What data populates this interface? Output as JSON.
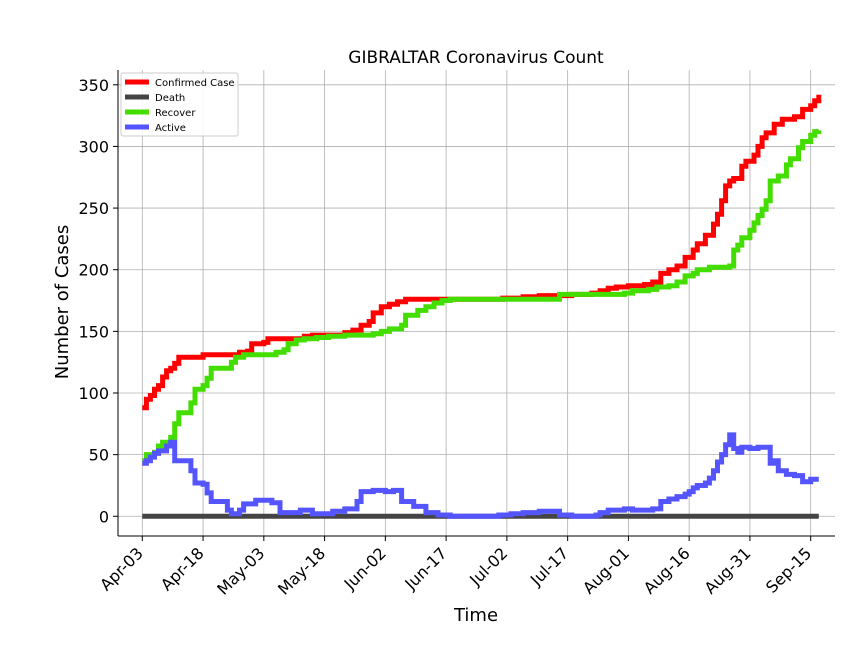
{
  "chart_data": {
    "type": "line",
    "title": "GIBRALTAR Coronavirus Count",
    "xlabel": "Time",
    "ylabel": "Number of Cases",
    "ylim": [
      -16,
      362
    ],
    "yticks": [
      0,
      50,
      100,
      150,
      200,
      250,
      300,
      350
    ],
    "xlim": [
      "2020-03-28",
      "2020-09-21"
    ],
    "xtick_dates": [
      "2020-04-03",
      "2020-04-18",
      "2020-05-03",
      "2020-05-18",
      "2020-06-02",
      "2020-06-17",
      "2020-07-02",
      "2020-07-17",
      "2020-08-01",
      "2020-08-16",
      "2020-08-31",
      "2020-09-15"
    ],
    "xtick_labels": [
      "Apr-03",
      "Apr-18",
      "May-03",
      "May-18",
      "Jun-02",
      "Jun-17",
      "Jul-02",
      "Jul-17",
      "Aug-01",
      "Aug-16",
      "Aug-31",
      "Sep-15"
    ],
    "grid": true,
    "legend_position": "top-left",
    "series": [
      {
        "name": "Confirmed Case",
        "color": "#ff0000",
        "points": [
          [
            "2020-04-03",
            88
          ],
          [
            "2020-04-04",
            95
          ],
          [
            "2020-04-05",
            98
          ],
          [
            "2020-04-06",
            103
          ],
          [
            "2020-04-07",
            106
          ],
          [
            "2020-04-08",
            113
          ],
          [
            "2020-04-09",
            118
          ],
          [
            "2020-04-10",
            120
          ],
          [
            "2020-04-11",
            124
          ],
          [
            "2020-04-12",
            129
          ],
          [
            "2020-04-17",
            129
          ],
          [
            "2020-04-18",
            131
          ],
          [
            "2020-04-26",
            131
          ],
          [
            "2020-04-27",
            133
          ],
          [
            "2020-04-29",
            134
          ],
          [
            "2020-04-30",
            140
          ],
          [
            "2020-05-03",
            141
          ],
          [
            "2020-05-04",
            144
          ],
          [
            "2020-05-12",
            144
          ],
          [
            "2020-05-13",
            146
          ],
          [
            "2020-05-15",
            147
          ],
          [
            "2020-05-22",
            147
          ],
          [
            "2020-05-23",
            149
          ],
          [
            "2020-05-25",
            151
          ],
          [
            "2020-05-27",
            155
          ],
          [
            "2020-05-29",
            158
          ],
          [
            "2020-05-30",
            165
          ],
          [
            "2020-06-01",
            170
          ],
          [
            "2020-06-03",
            172
          ],
          [
            "2020-06-05",
            174
          ],
          [
            "2020-06-07",
            176
          ],
          [
            "2020-06-30",
            176
          ],
          [
            "2020-07-01",
            177
          ],
          [
            "2020-07-06",
            178
          ],
          [
            "2020-07-10",
            179
          ],
          [
            "2020-07-18",
            180
          ],
          [
            "2020-07-23",
            181
          ],
          [
            "2020-07-25",
            183
          ],
          [
            "2020-07-27",
            185
          ],
          [
            "2020-07-29",
            186
          ],
          [
            "2020-08-01",
            187
          ],
          [
            "2020-08-05",
            188
          ],
          [
            "2020-08-07",
            190
          ],
          [
            "2020-08-09",
            197
          ],
          [
            "2020-08-11",
            200
          ],
          [
            "2020-08-13",
            203
          ],
          [
            "2020-08-15",
            210
          ],
          [
            "2020-08-17",
            216
          ],
          [
            "2020-08-18",
            221
          ],
          [
            "2020-08-20",
            228
          ],
          [
            "2020-08-22",
            237
          ],
          [
            "2020-08-23",
            245
          ],
          [
            "2020-08-24",
            256
          ],
          [
            "2020-08-25",
            268
          ],
          [
            "2020-08-26",
            272
          ],
          [
            "2020-08-27",
            274
          ],
          [
            "2020-08-29",
            284
          ],
          [
            "2020-08-30",
            288
          ],
          [
            "2020-09-01",
            293
          ],
          [
            "2020-09-02",
            300
          ],
          [
            "2020-09-03",
            307
          ],
          [
            "2020-09-04",
            311
          ],
          [
            "2020-09-06",
            318
          ],
          [
            "2020-09-08",
            322
          ],
          [
            "2020-09-11",
            324
          ],
          [
            "2020-09-13",
            330
          ],
          [
            "2020-09-15",
            333
          ],
          [
            "2020-09-16",
            337
          ],
          [
            "2020-09-17",
            342
          ]
        ]
      },
      {
        "name": "Death",
        "color": "#444444",
        "points": [
          [
            "2020-04-03",
            0
          ],
          [
            "2020-09-17",
            0
          ]
        ]
      },
      {
        "name": "Recover",
        "color": "#44dd00",
        "points": [
          [
            "2020-04-03",
            45
          ],
          [
            "2020-04-04",
            50
          ],
          [
            "2020-04-06",
            52
          ],
          [
            "2020-04-07",
            57
          ],
          [
            "2020-04-08",
            60
          ],
          [
            "2020-04-10",
            64
          ],
          [
            "2020-04-11",
            75
          ],
          [
            "2020-04-12",
            84
          ],
          [
            "2020-04-15",
            92
          ],
          [
            "2020-04-16",
            103
          ],
          [
            "2020-04-18",
            106
          ],
          [
            "2020-04-19",
            112
          ],
          [
            "2020-04-20",
            120
          ],
          [
            "2020-04-25",
            125
          ],
          [
            "2020-04-26",
            129
          ],
          [
            "2020-04-28",
            131
          ],
          [
            "2020-05-06",
            133
          ],
          [
            "2020-05-08",
            135
          ],
          [
            "2020-05-09",
            140
          ],
          [
            "2020-05-11",
            143
          ],
          [
            "2020-05-13",
            144
          ],
          [
            "2020-05-16",
            145
          ],
          [
            "2020-05-19",
            146
          ],
          [
            "2020-05-23",
            147
          ],
          [
            "2020-05-30",
            148
          ],
          [
            "2020-06-01",
            150
          ],
          [
            "2020-06-03",
            152
          ],
          [
            "2020-06-06",
            155
          ],
          [
            "2020-06-07",
            163
          ],
          [
            "2020-06-10",
            167
          ],
          [
            "2020-06-12",
            170
          ],
          [
            "2020-06-14",
            173
          ],
          [
            "2020-06-16",
            175
          ],
          [
            "2020-06-18",
            176
          ],
          [
            "2020-07-14",
            176
          ],
          [
            "2020-07-15",
            180
          ],
          [
            "2020-07-29",
            180
          ],
          [
            "2020-07-31",
            181
          ],
          [
            "2020-08-02",
            183
          ],
          [
            "2020-08-06",
            184
          ],
          [
            "2020-08-08",
            186
          ],
          [
            "2020-08-11",
            187
          ],
          [
            "2020-08-13",
            190
          ],
          [
            "2020-08-15",
            195
          ],
          [
            "2020-08-17",
            197
          ],
          [
            "2020-08-18",
            200
          ],
          [
            "2020-08-21",
            202
          ],
          [
            "2020-08-26",
            203
          ],
          [
            "2020-08-27",
            216
          ],
          [
            "2020-08-28",
            220
          ],
          [
            "2020-08-29",
            226
          ],
          [
            "2020-08-31",
            232
          ],
          [
            "2020-09-01",
            238
          ],
          [
            "2020-09-02",
            244
          ],
          [
            "2020-09-03",
            249
          ],
          [
            "2020-09-04",
            256
          ],
          [
            "2020-09-05",
            272
          ],
          [
            "2020-09-07",
            276
          ],
          [
            "2020-09-09",
            285
          ],
          [
            "2020-09-10",
            290
          ],
          [
            "2020-09-12",
            299
          ],
          [
            "2020-09-13",
            304
          ],
          [
            "2020-09-15",
            309
          ],
          [
            "2020-09-16",
            312
          ],
          [
            "2020-09-17",
            313
          ]
        ]
      },
      {
        "name": "Active",
        "color": "#5555ff",
        "points": [
          [
            "2020-04-03",
            43
          ],
          [
            "2020-04-04",
            45
          ],
          [
            "2020-04-05",
            48
          ],
          [
            "2020-04-06",
            51
          ],
          [
            "2020-04-07",
            53
          ],
          [
            "2020-04-09",
            57
          ],
          [
            "2020-04-10",
            60
          ],
          [
            "2020-04-11",
            45
          ],
          [
            "2020-04-15",
            37
          ],
          [
            "2020-04-16",
            27
          ],
          [
            "2020-04-18",
            26
          ],
          [
            "2020-04-19",
            19
          ],
          [
            "2020-04-20",
            12
          ],
          [
            "2020-04-24",
            5
          ],
          [
            "2020-04-25",
            2
          ],
          [
            "2020-04-27",
            5
          ],
          [
            "2020-04-28",
            10
          ],
          [
            "2020-05-01",
            13
          ],
          [
            "2020-05-05",
            11
          ],
          [
            "2020-05-07",
            3
          ],
          [
            "2020-05-10",
            3
          ],
          [
            "2020-05-12",
            5
          ],
          [
            "2020-05-15",
            2
          ],
          [
            "2020-05-20",
            4
          ],
          [
            "2020-05-23",
            6
          ],
          [
            "2020-05-26",
            12
          ],
          [
            "2020-05-27",
            20
          ],
          [
            "2020-05-30",
            21
          ],
          [
            "2020-06-02",
            20
          ],
          [
            "2020-06-04",
            21
          ],
          [
            "2020-06-06",
            12
          ],
          [
            "2020-06-09",
            8
          ],
          [
            "2020-06-12",
            3
          ],
          [
            "2020-06-15",
            1
          ],
          [
            "2020-06-18",
            0
          ],
          [
            "2020-06-28",
            0
          ],
          [
            "2020-06-30",
            1
          ],
          [
            "2020-07-03",
            2
          ],
          [
            "2020-07-06",
            3
          ],
          [
            "2020-07-10",
            4
          ],
          [
            "2020-07-15",
            1
          ],
          [
            "2020-07-18",
            0
          ],
          [
            "2020-07-24",
            1
          ],
          [
            "2020-07-25",
            3
          ],
          [
            "2020-07-27",
            5
          ],
          [
            "2020-07-31",
            6
          ],
          [
            "2020-08-02",
            5
          ],
          [
            "2020-08-07",
            6
          ],
          [
            "2020-08-09",
            12
          ],
          [
            "2020-08-11",
            14
          ],
          [
            "2020-08-13",
            16
          ],
          [
            "2020-08-15",
            18
          ],
          [
            "2020-08-16",
            20
          ],
          [
            "2020-08-17",
            23
          ],
          [
            "2020-08-18",
            25
          ],
          [
            "2020-08-20",
            27
          ],
          [
            "2020-08-21",
            31
          ],
          [
            "2020-08-22",
            37
          ],
          [
            "2020-08-23",
            44
          ],
          [
            "2020-08-24",
            50
          ],
          [
            "2020-08-25",
            58
          ],
          [
            "2020-08-26",
            66
          ],
          [
            "2020-08-27",
            55
          ],
          [
            "2020-08-28",
            52
          ],
          [
            "2020-08-29",
            56
          ],
          [
            "2020-08-31",
            55
          ],
          [
            "2020-09-02",
            56
          ],
          [
            "2020-09-05",
            43
          ],
          [
            "2020-09-06",
            45
          ],
          [
            "2020-09-07",
            37
          ],
          [
            "2020-09-09",
            34
          ],
          [
            "2020-09-11",
            33
          ],
          [
            "2020-09-13",
            28
          ],
          [
            "2020-09-15",
            30
          ],
          [
            "2020-09-17",
            30
          ]
        ]
      }
    ]
  }
}
